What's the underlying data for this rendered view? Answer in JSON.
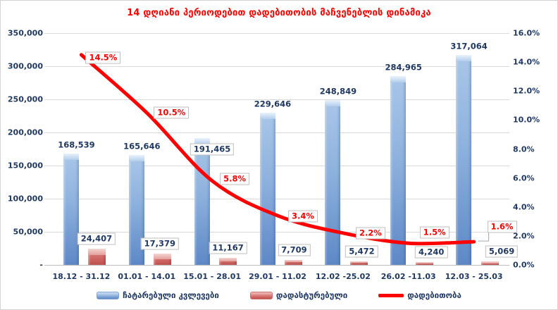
{
  "chart_data": {
    "type": "bar",
    "title": "14 დღიანი პერიოდებით დადებითობის მაჩვენებლის დინამიკა",
    "categories": [
      "18.12 - 31.12",
      "01.01 - 14.01",
      "15.01 - 28.01",
      "29.01 - 11.02",
      "12.02 -25.02",
      "26.02 -11.03",
      "12.03 - 25.03"
    ],
    "series": [
      {
        "name": "ჩატარებული კვლევები",
        "type": "bar",
        "axis": "left",
        "color": "#4f81bd",
        "values": [
          168539,
          165646,
          191465,
          229646,
          248849,
          284965,
          317064
        ],
        "labels": [
          "168,539",
          "165,646",
          "191,465",
          "229,646",
          "248,849",
          "284,965",
          "317,064"
        ]
      },
      {
        "name": "დადასტურებული",
        "type": "bar",
        "axis": "left",
        "color": "#c0504d",
        "values": [
          24407,
          17379,
          11167,
          7709,
          5472,
          4240,
          5069
        ],
        "labels": [
          "24,407",
          "17,379",
          "11,167",
          "7,709",
          "5,472",
          "4,240",
          "5,069"
        ]
      },
      {
        "name": "დადებითობა",
        "type": "line",
        "axis": "right",
        "color": "#ff0000",
        "values": [
          14.5,
          10.5,
          5.8,
          3.4,
          2.2,
          1.5,
          1.6
        ],
        "labels": [
          "14.5%",
          "10.5%",
          "5.8%",
          "3.4%",
          "2.2%",
          "1.5%",
          "1.6%"
        ]
      }
    ],
    "y_left": {
      "min": 0,
      "max": 350000,
      "tick_labels": [
        "350,000",
        "300,000",
        "250,000",
        "200,000",
        "150,000",
        "100,000",
        "50,000",
        "-"
      ]
    },
    "y_right": {
      "min": 0,
      "max": 16,
      "tick_labels": [
        "16.0%",
        "14.0%",
        "12.0%",
        "10.0%",
        "8.0%",
        "6.0%",
        "4.0%",
        "2.0%",
        "0.0%"
      ]
    },
    "grid": "horizontal",
    "legend_position": "bottom",
    "colors": {
      "title": "#ff0000",
      "axis_text": "#1f3864",
      "gridline": "#d9d9d9",
      "bar_blue": "#4f81bd",
      "bar_red": "#c0504d",
      "line_red": "#ff0000"
    }
  }
}
